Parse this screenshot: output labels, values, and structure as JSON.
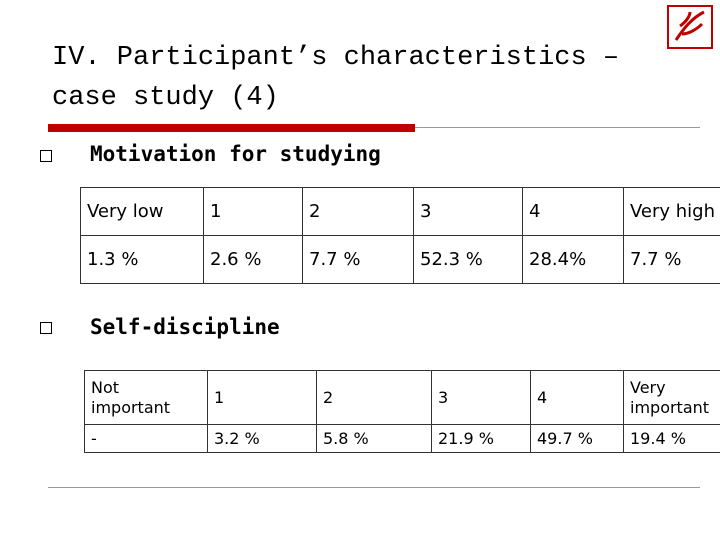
{
  "title": "IV. Participant’s characteristics – case study (4)",
  "sections": [
    {
      "heading": "Motivation for studying",
      "table": {
        "rows": [
          [
            "Very low",
            "1",
            "2",
            "3",
            "4",
            "Very high"
          ],
          [
            "1.3 %",
            "2.6 %",
            "7.7 %",
            "52.3 %",
            "28.4%",
            "7.7 %"
          ]
        ]
      }
    },
    {
      "heading": "Self-discipline",
      "table": {
        "rows": [
          [
            "Not important",
            "1",
            "2",
            "3",
            "4",
            "Very important"
          ],
          [
            "-",
            "3.2 %",
            "5.8 %",
            "21.9 %",
            "49.7 %",
            "19.4 %"
          ]
        ]
      }
    }
  ]
}
